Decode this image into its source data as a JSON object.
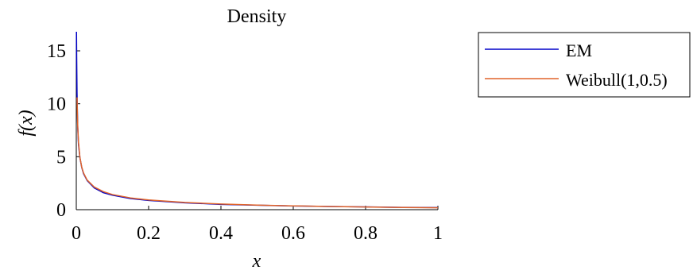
{
  "chart_data": {
    "type": "line",
    "title": "Density",
    "xlabel": "x",
    "ylabel": "f(x)",
    "xlim": [
      0,
      1
    ],
    "ylim": [
      0,
      16.8
    ],
    "x_ticks": [
      0,
      0.2,
      0.4,
      0.6,
      0.8,
      1
    ],
    "x_tick_labels": [
      "0",
      "0.2",
      "0.4",
      "0.6",
      "0.8",
      "1"
    ],
    "y_ticks": [
      0,
      5,
      10,
      15
    ],
    "y_tick_labels": [
      "0",
      "5",
      "10",
      "15"
    ],
    "grid": false,
    "legend_position": "outside-right",
    "series": [
      {
        "name": "EM",
        "color": "#0000c8",
        "x": [
          0.0005,
          0.001,
          0.002,
          0.004,
          0.006,
          0.01,
          0.015,
          0.02,
          0.03,
          0.05,
          0.075,
          0.1,
          0.15,
          0.2,
          0.3,
          0.4,
          0.5,
          0.6,
          0.7,
          0.8,
          0.9,
          1.0
        ],
        "y": [
          16.8,
          14.5,
          11.0,
          7.7,
          6.2,
          4.9,
          4.0,
          3.4,
          2.75,
          2.05,
          1.6,
          1.37,
          1.05,
          0.87,
          0.65,
          0.5,
          0.42,
          0.35,
          0.3,
          0.26,
          0.22,
          0.2
        ]
      },
      {
        "name": "Weibull(1,0.5)",
        "color": "#e0642a",
        "x": [
          0.0022,
          0.003,
          0.004,
          0.006,
          0.01,
          0.015,
          0.02,
          0.03,
          0.05,
          0.075,
          0.1,
          0.15,
          0.2,
          0.3,
          0.4,
          0.5,
          0.6,
          0.7,
          0.8,
          0.9,
          1.0
        ],
        "y": [
          10.6,
          9.1,
          7.9,
          6.4,
          4.95,
          4.02,
          3.47,
          2.8,
          2.13,
          1.7,
          1.43,
          1.11,
          0.92,
          0.68,
          0.53,
          0.43,
          0.36,
          0.3,
          0.25,
          0.21,
          0.18
        ]
      }
    ]
  }
}
